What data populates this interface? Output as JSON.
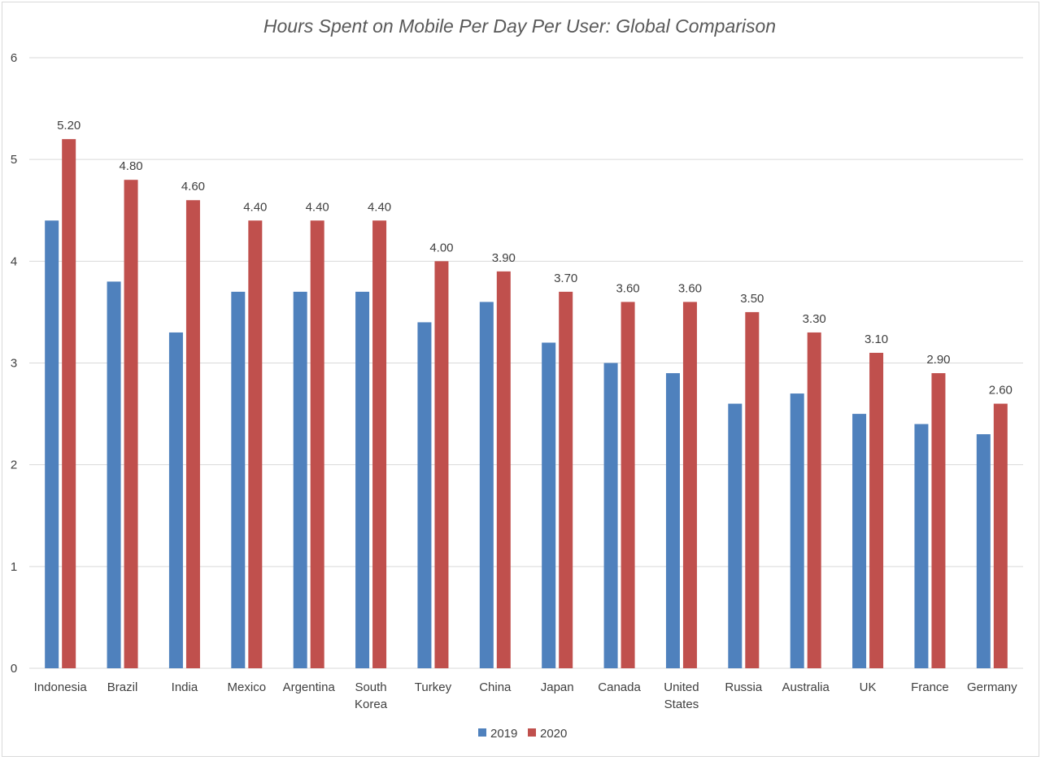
{
  "chart_data": {
    "type": "bar",
    "title": "Hours Spent on Mobile Per Day Per User: Global Comparison",
    "xlabel": "",
    "ylabel": "",
    "ylim": [
      0,
      6
    ],
    "yticks": [
      "0",
      "1",
      "2",
      "3",
      "4",
      "5",
      "6"
    ],
    "grid": true,
    "legend_position": "bottom",
    "categories": [
      [
        "Indonesia"
      ],
      [
        "Brazil"
      ],
      [
        "India"
      ],
      [
        "Mexico"
      ],
      [
        "Argentina"
      ],
      [
        "South",
        "Korea"
      ],
      [
        "Turkey"
      ],
      [
        "China"
      ],
      [
        "Japan"
      ],
      [
        "Canada"
      ],
      [
        "United",
        "States"
      ],
      [
        "Russia"
      ],
      [
        "Australia"
      ],
      [
        "UK"
      ],
      [
        "France"
      ],
      [
        "Germany"
      ]
    ],
    "series": [
      {
        "name": "2019",
        "color": "#4f81bd",
        "values": [
          4.4,
          3.8,
          3.3,
          3.7,
          3.7,
          3.7,
          3.4,
          3.6,
          3.2,
          3.0,
          2.9,
          2.6,
          2.7,
          2.5,
          2.4,
          2.3
        ]
      },
      {
        "name": "2020",
        "color": "#c0504d",
        "values": [
          5.2,
          4.8,
          4.6,
          4.4,
          4.4,
          4.4,
          4.0,
          3.9,
          3.7,
          3.6,
          3.6,
          3.5,
          3.3,
          3.1,
          2.9,
          2.6
        ],
        "data_labels": [
          "5.20",
          "4.80",
          "4.60",
          "4.40",
          "4.40",
          "4.40",
          "4.00",
          "3.90",
          "3.70",
          "3.60",
          "3.60",
          "3.50",
          "3.30",
          "3.10",
          "2.90",
          "2.60"
        ]
      }
    ]
  }
}
